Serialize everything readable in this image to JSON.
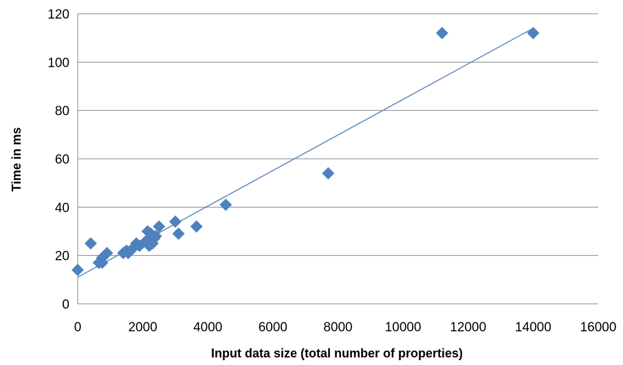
{
  "chart_data": {
    "type": "scatter",
    "title": "",
    "xlabel": "Input data size (total number of properties)",
    "ylabel": "Time in ms",
    "xlim": [
      0,
      16000
    ],
    "ylim": [
      0,
      120
    ],
    "xticks": [
      0,
      2000,
      4000,
      6000,
      8000,
      10000,
      12000,
      14000,
      16000
    ],
    "yticks": [
      0,
      20,
      40,
      60,
      80,
      100,
      120
    ],
    "grid": "horizontal",
    "legend": "none",
    "marker": "diamond",
    "marker_color": "#4F81BD",
    "trendline": {
      "type": "linear",
      "color": "#4F81BD",
      "x": [
        0,
        14000
      ],
      "y": [
        11,
        114
      ]
    },
    "points": [
      {
        "x": 0,
        "y": 14
      },
      {
        "x": 400,
        "y": 25
      },
      {
        "x": 650,
        "y": 17
      },
      {
        "x": 750,
        "y": 19
      },
      {
        "x": 750,
        "y": 17
      },
      {
        "x": 900,
        "y": 21
      },
      {
        "x": 1400,
        "y": 21
      },
      {
        "x": 1500,
        "y": 22
      },
      {
        "x": 1550,
        "y": 21
      },
      {
        "x": 1700,
        "y": 23
      },
      {
        "x": 1800,
        "y": 25
      },
      {
        "x": 1900,
        "y": 24
      },
      {
        "x": 2100,
        "y": 26
      },
      {
        "x": 2150,
        "y": 30
      },
      {
        "x": 2200,
        "y": 24
      },
      {
        "x": 2250,
        "y": 29
      },
      {
        "x": 2300,
        "y": 25
      },
      {
        "x": 2350,
        "y": 27
      },
      {
        "x": 2400,
        "y": 28
      },
      {
        "x": 2500,
        "y": 32
      },
      {
        "x": 3000,
        "y": 34
      },
      {
        "x": 3100,
        "y": 29
      },
      {
        "x": 3650,
        "y": 32
      },
      {
        "x": 4550,
        "y": 41
      },
      {
        "x": 7700,
        "y": 54
      },
      {
        "x": 11200,
        "y": 112
      },
      {
        "x": 14000,
        "y": 112
      }
    ]
  }
}
